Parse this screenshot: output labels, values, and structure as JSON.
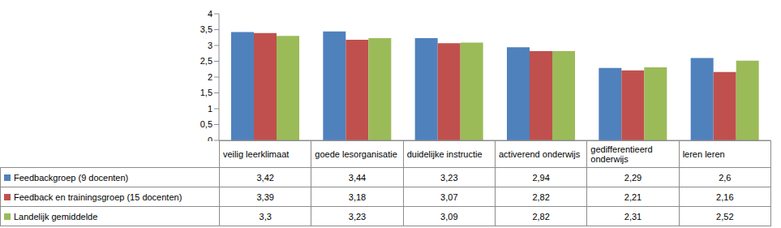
{
  "chart_data": {
    "type": "bar",
    "categories": [
      "veilig leerklimaat",
      "goede lesorganisatie",
      "duidelijke instructie",
      "activerend onderwijs",
      "gedifferentieerd onderwijs",
      "leren leren"
    ],
    "series": [
      {
        "name": "Feedbackgroep (9 docenten)",
        "color": "#4f81bd",
        "values": [
          3.42,
          3.44,
          3.23,
          2.94,
          2.29,
          2.6
        ],
        "value_labels": [
          "3,42",
          "3,44",
          "3,23",
          "2,94",
          "2,29",
          "2,6"
        ]
      },
      {
        "name": "Feedback en trainingsgroep  (15 docenten)",
        "color": "#c0504d",
        "values": [
          3.39,
          3.18,
          3.07,
          2.82,
          2.21,
          2.16
        ],
        "value_labels": [
          "3,39",
          "3,18",
          "3,07",
          "2,82",
          "2,21",
          "2,16"
        ]
      },
      {
        "name": "Landelijk gemiddelde",
        "color": "#9bbb59",
        "values": [
          3.3,
          3.23,
          3.09,
          2.82,
          2.31,
          2.52
        ],
        "value_labels": [
          "3,3",
          "3,23",
          "3,09",
          "2,82",
          "2,31",
          "2,52"
        ]
      }
    ],
    "ylim": [
      0,
      4
    ],
    "yticks": [
      0,
      {
        "value": 0.5,
        "label": "0,5"
      },
      1,
      {
        "value": 1.5,
        "label": "1,5"
      },
      2,
      {
        "value": 2.5,
        "label": "2,5"
      },
      3,
      {
        "value": 3.5,
        "label": "3,5"
      },
      4
    ],
    "grid": false
  }
}
